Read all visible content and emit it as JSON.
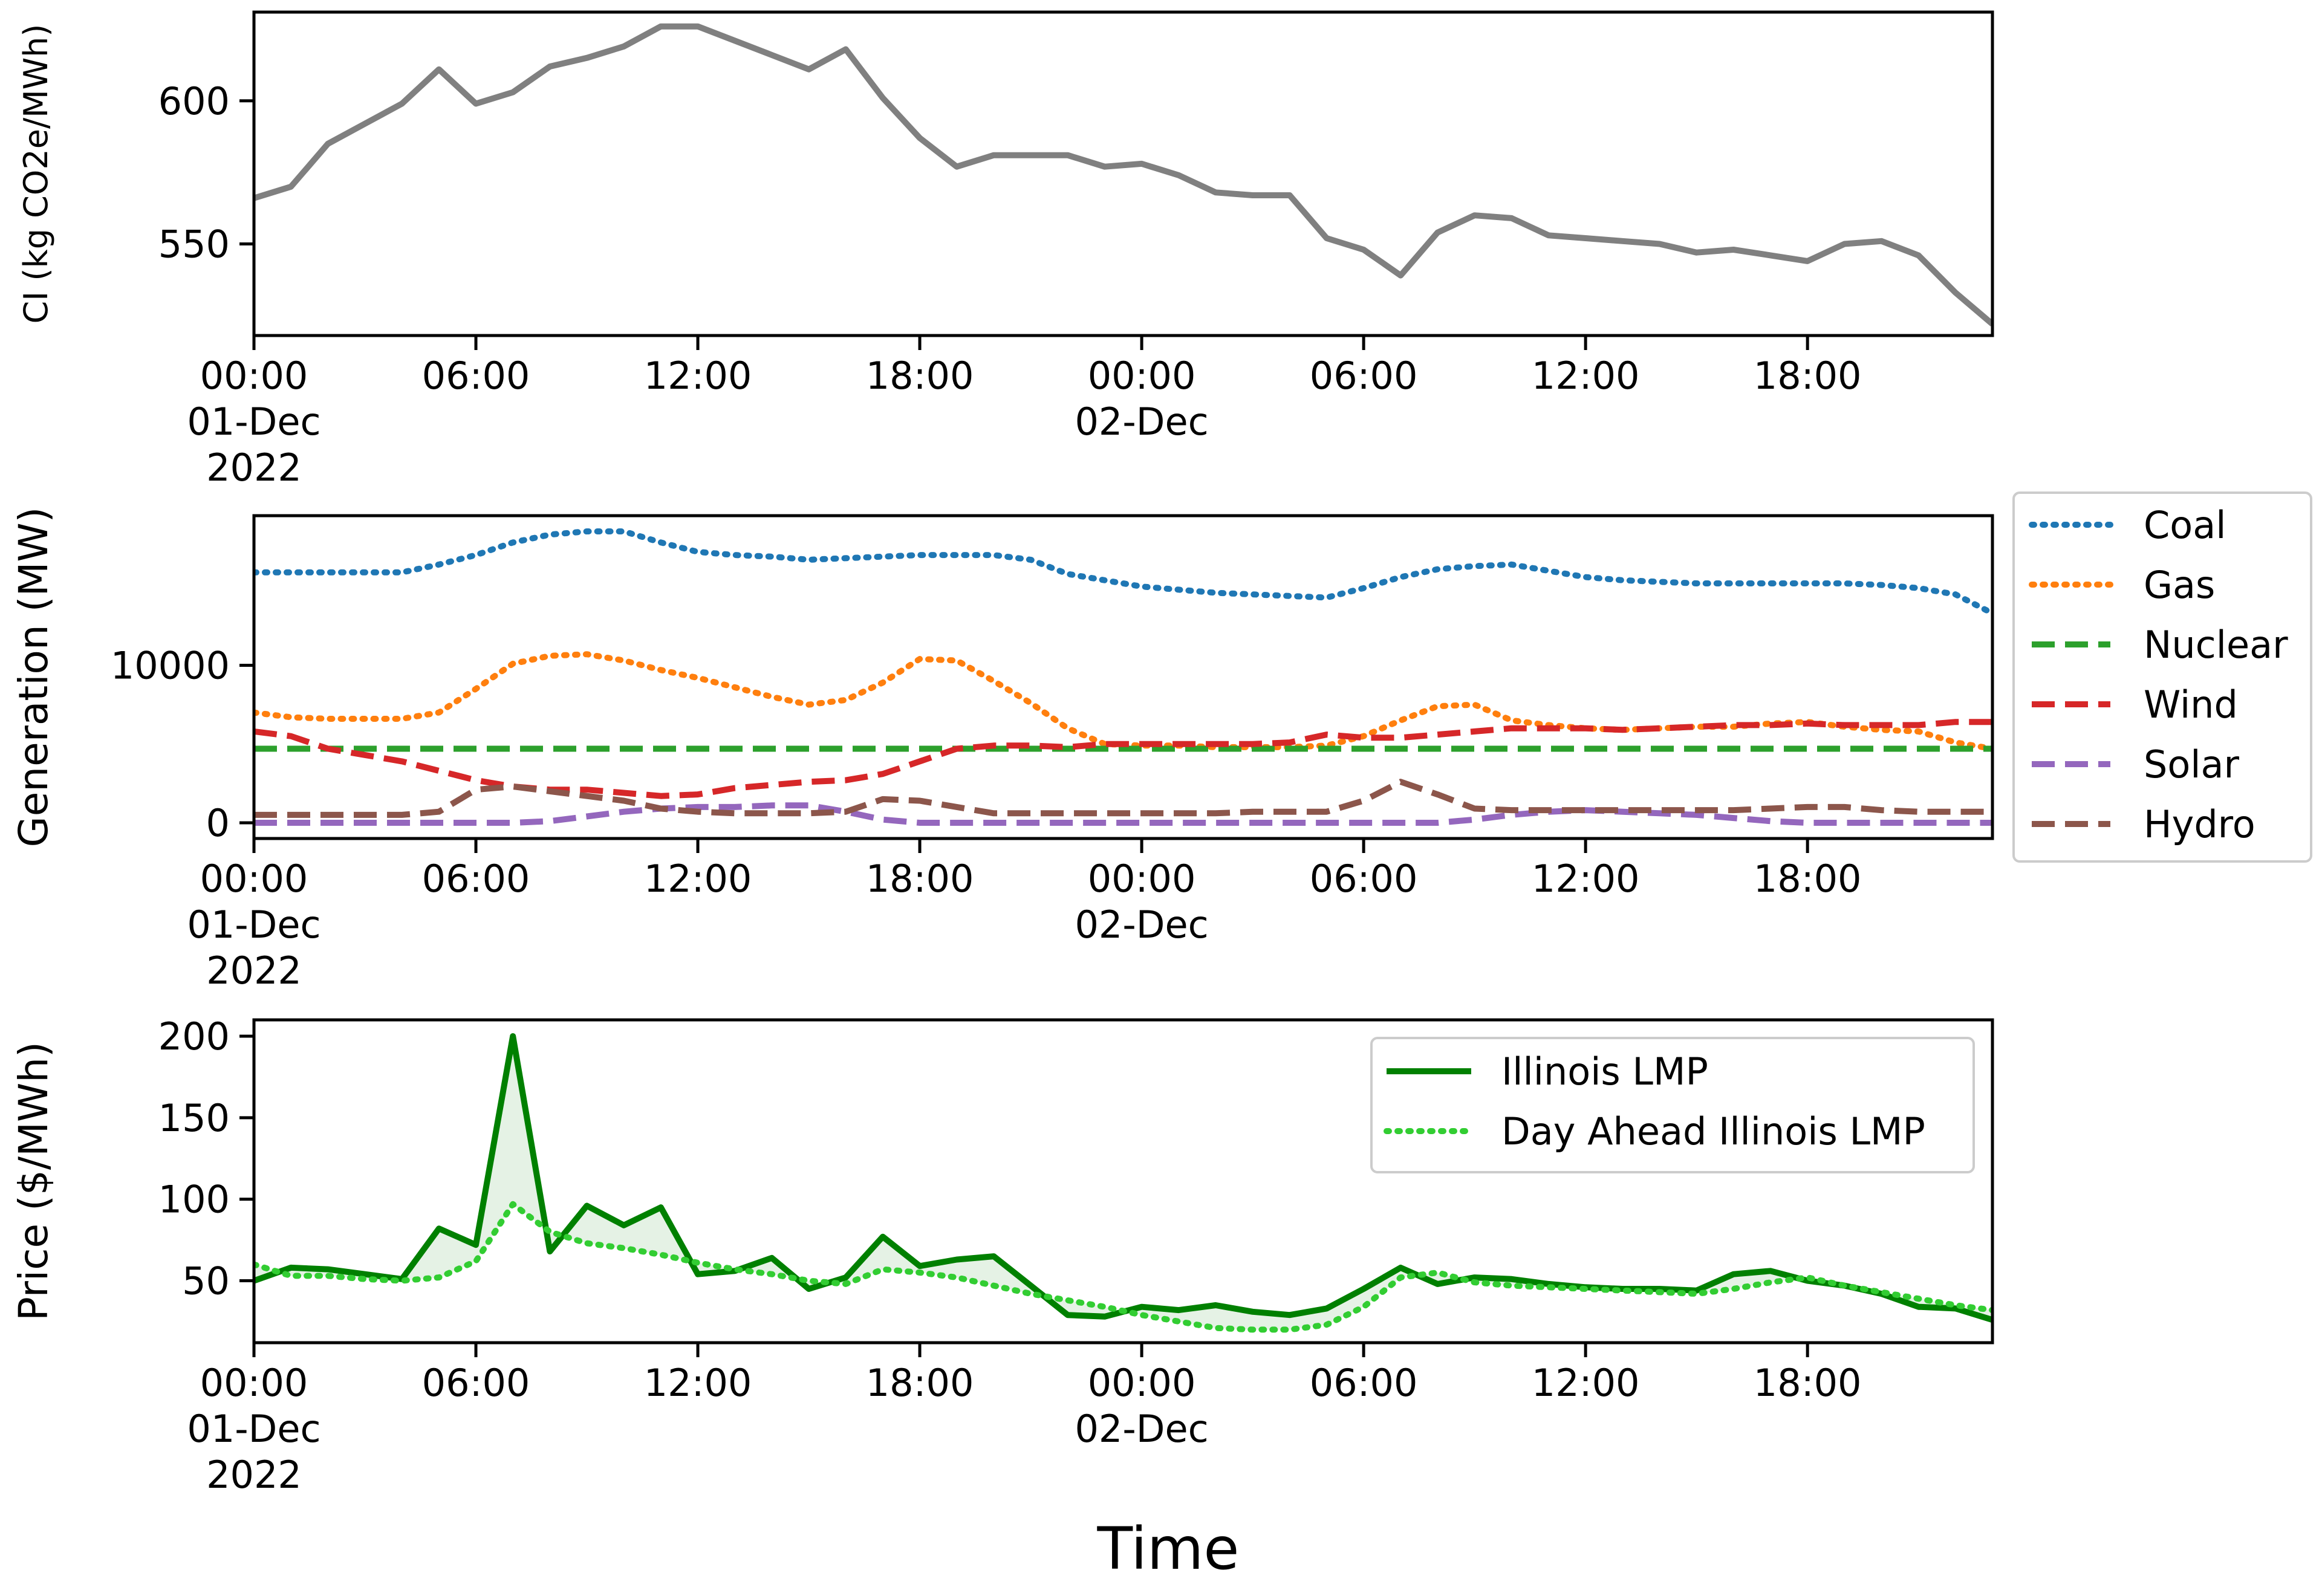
{
  "figure": {
    "xlabel": "Time"
  },
  "time_axis": {
    "ticks": [
      {
        "t": 0,
        "line1": "00:00",
        "line2": "01-Dec",
        "line3": "2022"
      },
      {
        "t": 6,
        "line1": "06:00",
        "line2": "",
        "line3": ""
      },
      {
        "t": 12,
        "line1": "12:00",
        "line2": "",
        "line3": ""
      },
      {
        "t": 18,
        "line1": "18:00",
        "line2": "",
        "line3": ""
      },
      {
        "t": 24,
        "line1": "00:00",
        "line2": "02-Dec",
        "line3": ""
      },
      {
        "t": 30,
        "line1": "06:00",
        "line2": "",
        "line3": ""
      },
      {
        "t": 36,
        "line1": "12:00",
        "line2": "",
        "line3": ""
      },
      {
        "t": 42,
        "line1": "18:00",
        "line2": "",
        "line3": ""
      }
    ]
  },
  "chart_data": [
    {
      "type": "line",
      "ylabel": "CI (kg CO2e/MWh)",
      "xlim": [
        "2022-12-01 00:00",
        "2022-12-02 23:00"
      ],
      "ylim": [
        518,
        631
      ],
      "yticks": [
        550,
        600
      ],
      "x": [
        "2022-12-01 00:00",
        "01:00",
        "02:00",
        "03:00",
        "04:00",
        "05:00",
        "06:00",
        "07:00",
        "08:00",
        "09:00",
        "10:00",
        "11:00",
        "12:00",
        "13:00",
        "14:00",
        "15:00",
        "16:00",
        "17:00",
        "18:00",
        "19:00",
        "20:00",
        "21:00",
        "22:00",
        "23:00",
        "2022-12-02 00:00",
        "01:00",
        "02:00",
        "03:00",
        "04:00",
        "05:00",
        "06:00",
        "07:00",
        "08:00",
        "09:00",
        "10:00",
        "11:00",
        "12:00",
        "13:00",
        "14:00",
        "15:00",
        "16:00",
        "17:00",
        "18:00",
        "19:00",
        "20:00",
        "21:00",
        "22:00",
        "23:00"
      ],
      "series": [
        {
          "color": "#808080",
          "style": "solid",
          "values": [
            566,
            570,
            585,
            592,
            599,
            611,
            599,
            603,
            612,
            615,
            619,
            626,
            626,
            621,
            616,
            611,
            618,
            601,
            587,
            577,
            581,
            581,
            581,
            577,
            578,
            574,
            568,
            567,
            567,
            552,
            548,
            539,
            554,
            560,
            559,
            553,
            552,
            551,
            550,
            547,
            548,
            546,
            544,
            550,
            551,
            546,
            533,
            522
          ]
        }
      ]
    },
    {
      "type": "line",
      "ylabel": "Generation (MW)",
      "xlim": [
        "2022-12-01 00:00",
        "2022-12-02 23:00"
      ],
      "ylim": [
        -1000,
        19500
      ],
      "yticks": [
        0,
        10000
      ],
      "legend": "outside-right",
      "series": [
        {
          "name": "Coal",
          "color": "#1f77b4",
          "style": "dotted",
          "values": [
            15900,
            15900,
            15900,
            15900,
            15900,
            16400,
            17000,
            17800,
            18300,
            18500,
            18500,
            17800,
            17200,
            17000,
            16900,
            16700,
            16800,
            16900,
            17000,
            17000,
            17000,
            16700,
            15800,
            15400,
            15000,
            14800,
            14600,
            14500,
            14400,
            14300,
            14900,
            15600,
            16100,
            16300,
            16400,
            16000,
            15600,
            15400,
            15300,
            15200,
            15200,
            15200,
            15200,
            15200,
            15100,
            14900,
            14500,
            13300
          ]
        },
        {
          "name": "Gas",
          "color": "#ff7f0e",
          "style": "dotted",
          "values": [
            7000,
            6700,
            6600,
            6600,
            6600,
            7000,
            8500,
            10100,
            10600,
            10700,
            10300,
            9700,
            9200,
            8600,
            8000,
            7500,
            7800,
            8900,
            10400,
            10300,
            9000,
            7600,
            6000,
            5000,
            4900,
            4900,
            4800,
            4800,
            4800,
            4900,
            5500,
            6500,
            7400,
            7500,
            6500,
            6200,
            6000,
            5900,
            6000,
            6100,
            6100,
            6300,
            6400,
            6100,
            5900,
            5800,
            5100,
            4700
          ]
        },
        {
          "name": "Nuclear",
          "color": "#2ca02c",
          "style": "dashed",
          "values": [
            4700,
            4700,
            4700,
            4700,
            4700,
            4700,
            4700,
            4700,
            4700,
            4700,
            4700,
            4700,
            4700,
            4700,
            4700,
            4700,
            4700,
            4700,
            4700,
            4700,
            4700,
            4700,
            4700,
            4700,
            4700,
            4700,
            4700,
            4700,
            4700,
            4700,
            4700,
            4700,
            4700,
            4700,
            4700,
            4700,
            4700,
            4700,
            4700,
            4700,
            4700,
            4700,
            4700,
            4700,
            4700,
            4700,
            4700,
            4700
          ]
        },
        {
          "name": "Wind",
          "color": "#d62728",
          "style": "dashed",
          "values": [
            5800,
            5500,
            4700,
            4300,
            3900,
            3300,
            2700,
            2300,
            2100,
            2100,
            1900,
            1700,
            1800,
            2200,
            2400,
            2600,
            2700,
            3100,
            3900,
            4700,
            4900,
            4900,
            4800,
            5000,
            5000,
            5000,
            5000,
            5000,
            5100,
            5600,
            5400,
            5400,
            5600,
            5800,
            6000,
            6000,
            6000,
            5900,
            6000,
            6100,
            6200,
            6200,
            6300,
            6200,
            6200,
            6200,
            6400,
            6400
          ]
        },
        {
          "name": "Solar",
          "color": "#9467bd",
          "style": "dashed",
          "values": [
            0,
            0,
            0,
            0,
            0,
            0,
            0,
            0,
            100,
            400,
            700,
            900,
            1000,
            1000,
            1100,
            1100,
            700,
            200,
            0,
            0,
            0,
            0,
            0,
            0,
            0,
            0,
            0,
            0,
            0,
            0,
            0,
            0,
            0,
            200,
            500,
            700,
            800,
            700,
            600,
            500,
            300,
            100,
            0,
            0,
            0,
            0,
            0,
            0
          ]
        },
        {
          "name": "Hydro",
          "color": "#8c564b",
          "style": "dashed",
          "values": [
            500,
            500,
            500,
            500,
            500,
            700,
            2100,
            2300,
            2000,
            1700,
            1400,
            900,
            700,
            600,
            600,
            600,
            700,
            1500,
            1400,
            1000,
            600,
            600,
            600,
            600,
            600,
            600,
            600,
            700,
            700,
            700,
            1400,
            2600,
            1800,
            900,
            800,
            800,
            800,
            800,
            800,
            800,
            800,
            900,
            1000,
            1000,
            800,
            700,
            700,
            700
          ]
        }
      ]
    },
    {
      "type": "line",
      "ylabel": "Price ($/MWh)",
      "xlim": [
        "2022-12-01 00:00",
        "2022-12-02 23:00"
      ],
      "ylim": [
        12,
        210
      ],
      "yticks": [
        50,
        100,
        150,
        200
      ],
      "legend": "upper right",
      "fill_between": true,
      "series": [
        {
          "name": "Illinois LMP",
          "color": "#008000",
          "style": "solid",
          "values": [
            50,
            58,
            57,
            54,
            51,
            82,
            72,
            200,
            68,
            96,
            84,
            95,
            54,
            56,
            64,
            45,
            52,
            77,
            59,
            63,
            65,
            47,
            29,
            28,
            34,
            32,
            35,
            31,
            29,
            33,
            45,
            58,
            48,
            52,
            51,
            48,
            46,
            45,
            45,
            44,
            54,
            56,
            50,
            47,
            42,
            34,
            33,
            26
          ]
        },
        {
          "name": "Day Ahead Illinois LMP",
          "color": "#32cd32",
          "style": "dotted",
          "values": [
            60,
            53,
            53,
            51,
            50,
            52,
            62,
            97,
            80,
            73,
            70,
            66,
            61,
            57,
            54,
            50,
            48,
            57,
            55,
            52,
            47,
            42,
            38,
            34,
            29,
            25,
            21,
            20,
            20,
            23,
            34,
            52,
            55,
            49,
            47,
            46,
            45,
            44,
            43,
            42,
            45,
            49,
            52,
            47,
            43,
            39,
            35,
            32
          ]
        }
      ]
    }
  ]
}
